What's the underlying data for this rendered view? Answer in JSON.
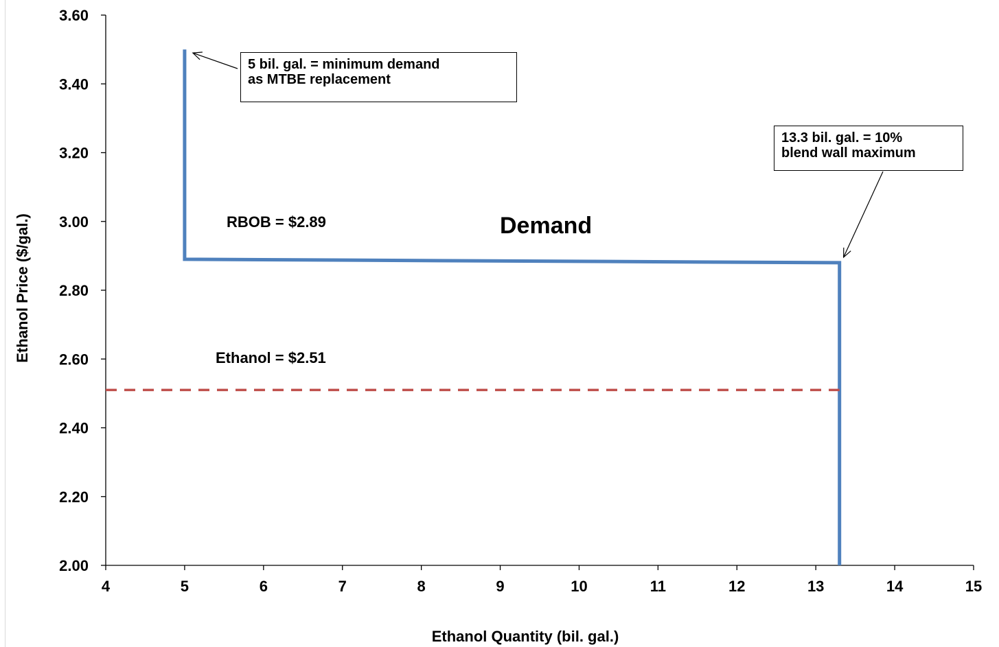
{
  "chart_data": {
    "type": "line",
    "title": "",
    "xlabel": "Ethanol Quantity (bil. gal.)",
    "ylabel": "Ethanol Price ($/gal.)",
    "xlim": [
      4,
      15
    ],
    "ylim": [
      2.0,
      3.6
    ],
    "x_ticks": [
      "4",
      "5",
      "6",
      "7",
      "8",
      "9",
      "10",
      "11",
      "12",
      "13",
      "14",
      "15"
    ],
    "y_ticks": [
      "2.00",
      "2.20",
      "2.40",
      "2.60",
      "2.80",
      "3.00",
      "3.20",
      "3.40",
      "3.60"
    ],
    "grid": false,
    "legend": "none",
    "series": [
      {
        "name": "Demand",
        "color": "#4f81bd",
        "style": "solid",
        "points": [
          [
            5.0,
            3.5
          ],
          [
            5.0,
            2.89
          ],
          [
            13.3,
            2.88
          ],
          [
            13.3,
            2.0
          ]
        ]
      },
      {
        "name": "",
        "color": "#c0504d",
        "style": "dashed",
        "points": [
          [
            4.0,
            2.51
          ],
          [
            13.3,
            2.51
          ]
        ]
      }
    ],
    "annotations": {
      "demand_label": "Demand",
      "rbob_label": "RBOB = $2.89",
      "ethanol_label": "Ethanol = $2.51",
      "note_min": [
        "5 bil. gal. = minimum demand",
        "as MTBE replacement"
      ],
      "note_max": [
        "13.3 bil. gal. = 10%",
        "blend wall maximum"
      ]
    }
  }
}
